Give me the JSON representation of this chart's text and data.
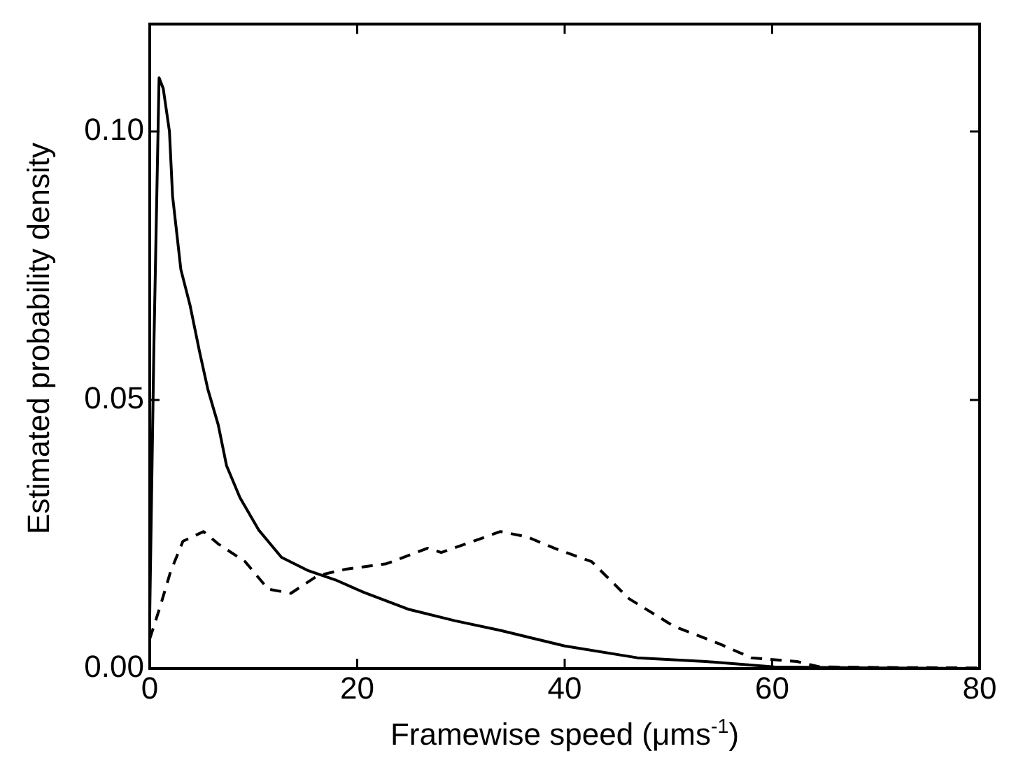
{
  "chart_data": {
    "type": "line",
    "xlabel": "Framewise speed (μms$^{-1}$)",
    "ylabel": "Estimated probability density",
    "xlim": [
      0,
      80
    ],
    "xticks": [
      0,
      20,
      40,
      60,
      80
    ],
    "ylim": [
      0,
      0.12
    ],
    "yticks": [
      {
        "value": 0,
        "label": "0.00"
      },
      0.05,
      {
        "value": 0.1,
        "label": "0.10"
      }
    ],
    "grid": false,
    "marker": "none",
    "series": [
      {
        "color": "#000000",
        "line_style": "solid",
        "x": [
          0,
          0.4,
          0.9,
          1.3,
          1.9,
          2.2,
          3.0,
          3.9,
          4.8,
          5.6,
          6.6,
          7.4,
          8.7,
          10.5,
          12.7,
          15.3,
          17.9,
          20.6,
          25,
          29.4,
          33.8,
          40,
          47,
          53.6,
          60.2,
          70,
          80
        ],
        "values": [
          0.01,
          0.06,
          0.11,
          0.108,
          0.1,
          0.088,
          0.0743,
          0.0675,
          0.059,
          0.052,
          0.0454,
          0.0378,
          0.0318,
          0.0258,
          0.0207,
          0.0182,
          0.0165,
          0.0142,
          0.011,
          0.0089,
          0.0071,
          0.0042,
          0.002,
          0.0013,
          0.0003,
          0.0001,
          0
        ]
      },
      {
        "color": "#000000",
        "line_style": "dashed",
        "x": [
          0,
          1,
          2,
          3.2,
          5.2,
          6.6,
          9.2,
          11.4,
          13.6,
          16.2,
          18.9,
          22.8,
          26.8,
          28.1,
          31.2,
          33.8,
          36.4,
          39,
          42.6,
          46.2,
          50.5,
          54.9,
          58,
          62.4,
          64.6,
          70,
          80
        ],
        "values": [
          0.0055,
          0.0115,
          0.018,
          0.0237,
          0.0255,
          0.0232,
          0.0199,
          0.0148,
          0.014,
          0.0173,
          0.0185,
          0.0195,
          0.0224,
          0.0216,
          0.0237,
          0.0255,
          0.0245,
          0.0224,
          0.0199,
          0.013,
          0.0079,
          0.0046,
          0.002,
          0.0013,
          0.0003,
          0.0002,
          0.0001
        ]
      }
    ]
  }
}
